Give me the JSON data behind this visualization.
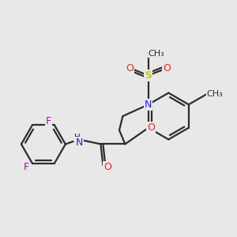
{
  "background_color": "#e8e8e8",
  "bond_color": "#2d2d2d",
  "atom_colors": {
    "N": "#2020ff",
    "O": "#ff2020",
    "F": "#bb00bb",
    "S": "#cccc00",
    "C_label": "#2d2d2d",
    "H": "#2d2d2d"
  },
  "figsize": [
    3.0,
    3.0
  ],
  "dpi": 100
}
